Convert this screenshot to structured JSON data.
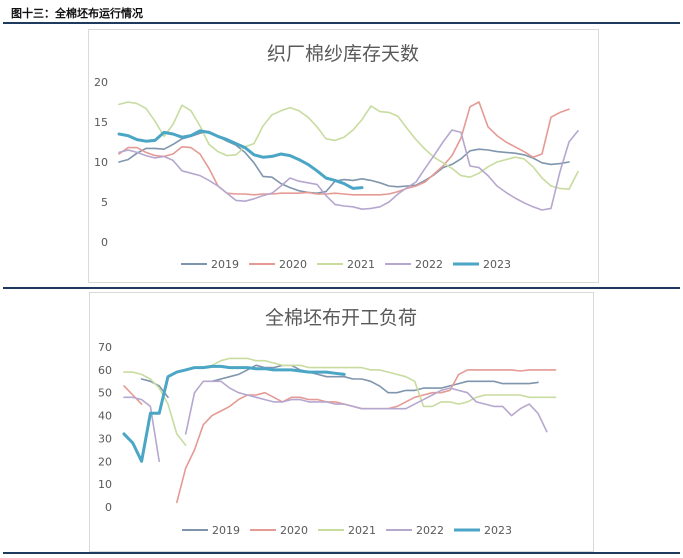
{
  "caption": "图十三：全棉坯布运行情况",
  "colors": {
    "2019": "#7f95ad",
    "2020": "#e59a94",
    "2021": "#c8dca0",
    "2022": "#b6a7ce",
    "2023": "#4ba6c6",
    "rule": "#1f3a5f",
    "axis_text": "#595959"
  },
  "chart_data": [
    {
      "type": "line",
      "title": "织厂棉纱库存天数",
      "ylim": [
        0,
        20
      ],
      "yticks": [
        "0",
        "5",
        "10",
        "15",
        "20"
      ],
      "grid": false,
      "legend": "bottom",
      "x_count": 53,
      "series": [
        {
          "name": "2019",
          "values": [
            10,
            10.3,
            11.1,
            11.7,
            11.7,
            11.6,
            12.2,
            12.9,
            13.2,
            13.6,
            13.8,
            13.2,
            12.6,
            12.1,
            11.2,
            9.9,
            8.2,
            8.1,
            7.3,
            6.8,
            6.4,
            6.2,
            6.1,
            6.3,
            7.6,
            7.8,
            7.7,
            7.9,
            7.7,
            7.4,
            7.0,
            6.9,
            7.0,
            7.1,
            7.7,
            8.4,
            9.3,
            9.7,
            10.4,
            11.4,
            11.6,
            11.5,
            11.3,
            11.2,
            11.1,
            10.9,
            10.5,
            9.9,
            9.7,
            9.8,
            10.0
          ]
        },
        {
          "name": "2020",
          "values": [
            11,
            11.8,
            11.8,
            11.2,
            10.8,
            10.7,
            11.0,
            11.9,
            11.8,
            11.0,
            9.2,
            7.0,
            6.1,
            6.0,
            6.0,
            5.9,
            6.0,
            6.0,
            6.1,
            6.1,
            6.1,
            6.2,
            6.0,
            6.0,
            6.1,
            6.0,
            5.9,
            5.9,
            5.9,
            5.9,
            6.0,
            6.3,
            6.7,
            7.0,
            7.5,
            8.5,
            9.5,
            10.8,
            13.0,
            16.9,
            17.5,
            14.4,
            13.3,
            12.5,
            11.9,
            11.3,
            10.6,
            11.0,
            15.6,
            16.2,
            16.6
          ]
        },
        {
          "name": "2021",
          "values": [
            17.2,
            17.5,
            17.3,
            16.7,
            15.1,
            13.2,
            14.7,
            17.1,
            16.4,
            14.5,
            12.2,
            11.3,
            10.8,
            10.9,
            11.9,
            12.3,
            14.5,
            15.9,
            16.4,
            16.8,
            16.4,
            15.6,
            14.4,
            12.9,
            12.7,
            13.1,
            14.0,
            15.3,
            17.0,
            16.3,
            16.2,
            15.7,
            14.2,
            12.8,
            11.6,
            10.6,
            9.9,
            9.2,
            8.3,
            8.1,
            8.6,
            9.4,
            10.0,
            10.3,
            10.6,
            10.4,
            9.4,
            8.0,
            7.0,
            6.7,
            6.6,
            8.8
          ]
        },
        {
          "name": "2022",
          "values": [
            11.2,
            11.5,
            11.2,
            10.8,
            10.5,
            10.7,
            10.2,
            8.9,
            8.6,
            8.3,
            7.7,
            7.0,
            6.1,
            5.2,
            5.1,
            5.4,
            5.8,
            6.1,
            7.0,
            8.0,
            7.6,
            7.4,
            7.2,
            5.8,
            4.7,
            4.5,
            4.4,
            4.1,
            4.2,
            4.4,
            5.0,
            6.0,
            6.8,
            7.5,
            9.2,
            10.8,
            12.5,
            14.0,
            13.7,
            9.5,
            9.3,
            8.3,
            7.0,
            6.2,
            5.5,
            4.9,
            4.4,
            4.0,
            4.2,
            8.8,
            12.5,
            13.9
          ]
        },
        {
          "name": "2023",
          "values": [
            13.5,
            13.3,
            12.8,
            12.6,
            12.7,
            13.7,
            13.5,
            13.1,
            13.3,
            13.9,
            13.7,
            13.2,
            12.8,
            12.3,
            11.8,
            10.9,
            10.6,
            10.7,
            11.0,
            10.8,
            10.3,
            9.7,
            8.9,
            8.0,
            7.7,
            7.3,
            6.7,
            6.8
          ]
        }
      ]
    },
    {
      "type": "line",
      "title": "全棉坯布开工负荷",
      "ylim": [
        0,
        70
      ],
      "yticks": [
        "0",
        "10",
        "20",
        "30",
        "40",
        "50",
        "60",
        "70"
      ],
      "grid": false,
      "legend": "bottom",
      "x_count": 53,
      "series": [
        {
          "name": "2019",
          "values": [
            null,
            null,
            56,
            55,
            53,
            48,
            null,
            null,
            null,
            null,
            55,
            56,
            57,
            58,
            60,
            62,
            61,
            61,
            62,
            62,
            60,
            59,
            58,
            57,
            57,
            57,
            56,
            56,
            55,
            53,
            50,
            50,
            51,
            51,
            52,
            52,
            52,
            53,
            54,
            55,
            55,
            55,
            55,
            54,
            54,
            54,
            54,
            54.5,
            null,
            null
          ]
        },
        {
          "name": "2020",
          "values": [
            53,
            49,
            45,
            null,
            null,
            null,
            2,
            17,
            25,
            36,
            40,
            42,
            44,
            47,
            49,
            49,
            50,
            48,
            46,
            48,
            48,
            47,
            47,
            46,
            46,
            45,
            44,
            43,
            43,
            43,
            43,
            44,
            46,
            48,
            49,
            50,
            50,
            51,
            58,
            60,
            60,
            60,
            60,
            60,
            60,
            59.5,
            60,
            60,
            60,
            60
          ]
        },
        {
          "name": "2021",
          "values": [
            59,
            59,
            58,
            56,
            52,
            45,
            32,
            27,
            null,
            null,
            62,
            64,
            65,
            65,
            65,
            64,
            64,
            63,
            62,
            62,
            62,
            61,
            61,
            61,
            61,
            61,
            61,
            61,
            60,
            60,
            59,
            58,
            57,
            55,
            44,
            44,
            46,
            46,
            45,
            46,
            48,
            49,
            49,
            49,
            49,
            49,
            48,
            48,
            48,
            48
          ]
        },
        {
          "name": "2022",
          "values": [
            48,
            48,
            47,
            44,
            20,
            null,
            null,
            32,
            50,
            55,
            55,
            55,
            52,
            50,
            49,
            48,
            47,
            46,
            46,
            47,
            47,
            46,
            46,
            46,
            45,
            45,
            44,
            43,
            43,
            43,
            43,
            43,
            43,
            45,
            47,
            49,
            51,
            52,
            51,
            50,
            46,
            45,
            44,
            44,
            40,
            43,
            45,
            41,
            33
          ]
        },
        {
          "name": "2023",
          "values": [
            32,
            28,
            20,
            41,
            41,
            57,
            59,
            60,
            61,
            61,
            61.5,
            61.5,
            61,
            61,
            61,
            60.5,
            60.5,
            60,
            60,
            60,
            59.5,
            59,
            59,
            59,
            58.5,
            58
          ]
        }
      ]
    }
  ]
}
